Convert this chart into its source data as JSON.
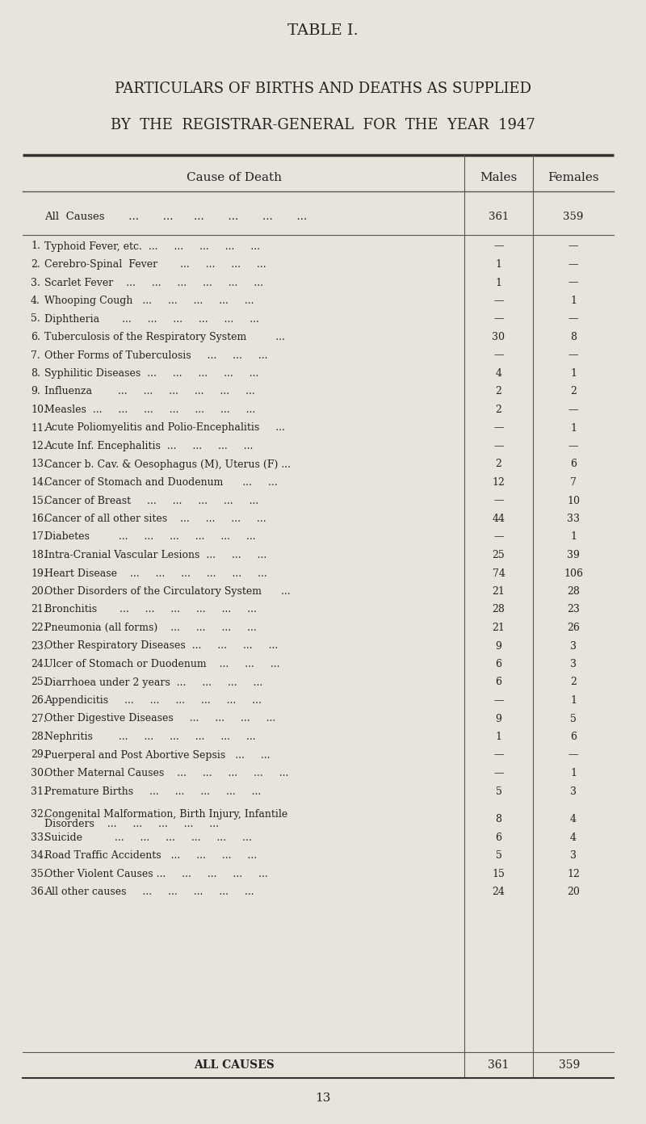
{
  "title1": "TABLE I.",
  "title2": "PARTICULARS OF BIRTHS AND DEATHS AS SUPPLIED",
  "title3": "BY  THE  REGISTRAR-GENERAL  FOR  THE  YEAR  1947",
  "bg_color": "#e8e4dc",
  "header_cause": "Cause of Death",
  "header_males": "Males",
  "header_females": "Females",
  "all_causes_label": "All  Causes       ...       ...      ...       ...       ...       ...",
  "all_causes_males": "361",
  "all_causes_females": "359",
  "rows": [
    {
      "num": "1.",
      "cause": "Typhoid Fever, etc.  ...     ...     ...     ...     ...",
      "males": "—",
      "females": "—"
    },
    {
      "num": "2.",
      "cause": "Cerebro-Spinal  Fever       ...     ...     ...     ...",
      "males": "1",
      "females": "—"
    },
    {
      "num": "3.",
      "cause": "Scarlet Fever    ...     ...     ...     ...     ...     ...",
      "males": "1",
      "females": "—"
    },
    {
      "num": "4.",
      "cause": "Whooping Cough   ...     ...     ...     ...     ...",
      "males": "—",
      "females": "1"
    },
    {
      "num": "5.",
      "cause": "Diphtheria       ...     ...     ...     ...     ...     ...",
      "males": "—",
      "females": "—"
    },
    {
      "num": "6.",
      "cause": "Tuberculosis of the Respiratory System         ...",
      "males": "30",
      "females": "8"
    },
    {
      "num": "7.",
      "cause": "Other Forms of Tuberculosis     ...     ...     ...",
      "males": "—",
      "females": "—"
    },
    {
      "num": "8.",
      "cause": "Syphilitic Diseases  ...     ...     ...     ...     ...",
      "males": "4",
      "females": "1"
    },
    {
      "num": "9.",
      "cause": "Influenza        ...     ...     ...     ...     ...     ...",
      "males": "2",
      "females": "2"
    },
    {
      "num": "10.",
      "cause": "Measles  ...     ...     ...     ...     ...     ...     ...",
      "males": "2",
      "females": "—"
    },
    {
      "num": "11.",
      "cause": "Acute Poliomyelitis and Polio-Encephalitis     ...",
      "males": "—",
      "females": "1"
    },
    {
      "num": "12.",
      "cause": "Acute Inf. Encephalitis  ...     ...     ...     ...",
      "males": "—",
      "females": "—"
    },
    {
      "num": "13.",
      "cause": "Cancer b. Cav. & Oesophagus (M), Uterus (F) ...",
      "males": "2",
      "females": "6"
    },
    {
      "num": "14.",
      "cause": "Cancer of Stomach and Duodenum      ...     ...",
      "males": "12",
      "females": "7"
    },
    {
      "num": "15.",
      "cause": "Cancer of Breast     ...     ...     ...     ...     ...",
      "males": "—",
      "females": "10"
    },
    {
      "num": "16.",
      "cause": "Cancer of all other sites    ...     ...     ...     ...",
      "males": "44",
      "females": "33"
    },
    {
      "num": "17.",
      "cause": "Diabetes         ...     ...     ...     ...     ...     ...",
      "males": "—",
      "females": "1"
    },
    {
      "num": "18.",
      "cause": "Intra-Cranial Vascular Lesions  ...     ...     ...",
      "males": "25",
      "females": "39"
    },
    {
      "num": "19.",
      "cause": "Heart Disease    ...     ...     ...     ...     ...     ...",
      "males": "74",
      "females": "106"
    },
    {
      "num": "20.",
      "cause": "Other Disorders of the Circulatory System      ...",
      "males": "21",
      "females": "28"
    },
    {
      "num": "21.",
      "cause": "Bronchitis       ...     ...     ...     ...     ...     ...",
      "males": "28",
      "females": "23"
    },
    {
      "num": "22.",
      "cause": "Pneumonia (all forms)    ...     ...     ...     ...",
      "males": "21",
      "females": "26"
    },
    {
      "num": "23.",
      "cause": "Other Respiratory Diseases  ...     ...     ...     ...",
      "males": "9",
      "females": "3"
    },
    {
      "num": "24.",
      "cause": "Ulcer of Stomach or Duodenum    ...     ...     ...",
      "males": "6",
      "females": "3"
    },
    {
      "num": "25.",
      "cause": "Diarrhoea under 2 years  ...     ...     ...     ...",
      "males": "6",
      "females": "2"
    },
    {
      "num": "26.",
      "cause": "Appendicitis     ...     ...     ...     ...     ...     ...",
      "males": "—",
      "females": "1"
    },
    {
      "num": "27.",
      "cause": "Other Digestive Diseases     ...     ...     ...     ...",
      "males": "9",
      "females": "5"
    },
    {
      "num": "28.",
      "cause": "Nephritis        ...     ...     ...     ...     ...     ...",
      "males": "1",
      "females": "6"
    },
    {
      "num": "29.",
      "cause": "Puerperal and Post Abortive Sepsis   ...     ...",
      "males": "—",
      "females": "—"
    },
    {
      "num": "30.",
      "cause": "Other Maternal Causes    ...     ...     ...     ...     ...",
      "males": "—",
      "females": "1"
    },
    {
      "num": "31.",
      "cause": "Premature Births     ...     ...     ...     ...     ...",
      "males": "5",
      "females": "3"
    },
    {
      "num": "32.",
      "cause": "Congenital Malformation, Birth Injury, Infantile\n        Disorders    ...     ...     ...     ...     ...",
      "males": "8",
      "females": "4"
    },
    {
      "num": "33.",
      "cause": "Suicide          ...     ...     ...     ...     ...     ...",
      "males": "6",
      "females": "4"
    },
    {
      "num": "34.",
      "cause": "Road Traffic Accidents   ...     ...     ...     ...",
      "males": "5",
      "females": "3"
    },
    {
      "num": "35.",
      "cause": "Other Violent Causes ...     ...     ...     ...     ...",
      "males": "15",
      "females": "12"
    },
    {
      "num": "36.",
      "cause": "All other causes     ...     ...     ...     ...     ...",
      "males": "24",
      "females": "20"
    }
  ],
  "footer_label": "ALL CAUSES",
  "footer_males": "361",
  "footer_females": "359",
  "page_number": "13"
}
